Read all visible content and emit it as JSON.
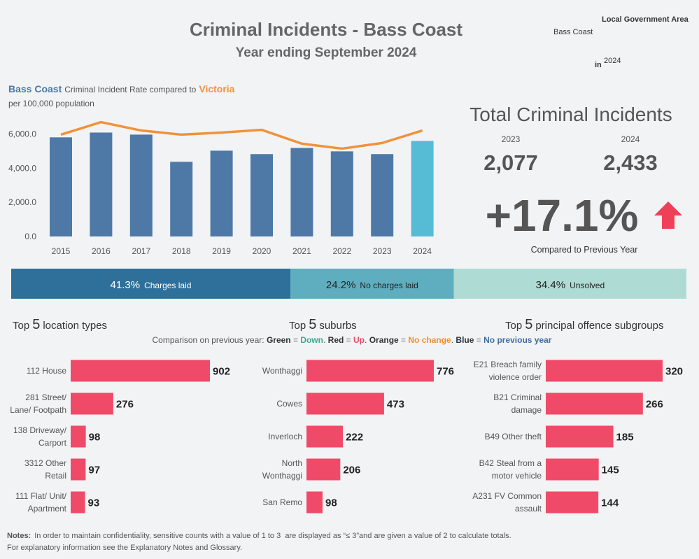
{
  "header": {
    "title": "Criminal Incidents - Bass Coast",
    "subtitle": "Year ending September 2024"
  },
  "filter": {
    "label": "Local Government Area",
    "area": "Bass Coast",
    "in_label": "in",
    "year": "2024"
  },
  "kpi": {
    "title": "Total Criminal Incidents",
    "items": [
      {
        "year": "2023",
        "value": "2,077"
      },
      {
        "year": "2024",
        "value": "2,433"
      }
    ],
    "change": "+17.1%",
    "caption": "Compared to Previous Year"
  },
  "comparison_note": [
    {
      "text": "Comparison on previous year: ",
      "color": "#555555",
      "bold": false
    },
    {
      "text": "Green",
      "color": "#333333",
      "bold": true
    },
    {
      "text": " = ",
      "color": "#555555",
      "bold": false
    },
    {
      "text": "Down",
      "color": "#3aaa8b",
      "bold": true
    },
    {
      "text": ". ",
      "color": "#555555",
      "bold": false
    },
    {
      "text": "Red",
      "color": "#333333",
      "bold": true
    },
    {
      "text": " = ",
      "color": "#555555",
      "bold": false
    },
    {
      "text": "Up",
      "color": "#e84a65",
      "bold": true
    },
    {
      "text": ". ",
      "color": "#555555",
      "bold": false
    },
    {
      "text": "Orange",
      "color": "#333333",
      "bold": true
    },
    {
      "text": " = ",
      "color": "#555555",
      "bold": false
    },
    {
      "text": "No change",
      "color": "#f09030",
      "bold": true
    },
    {
      "text": ". ",
      "color": "#555555",
      "bold": false
    },
    {
      "text": "Blue",
      "color": "#333333",
      "bold": true
    },
    {
      "text": " = ",
      "color": "#555555",
      "bold": false
    },
    {
      "text": "No previous year",
      "color": "#3f6e9e",
      "bold": true
    }
  ],
  "notes": {
    "label": "Notes:",
    "line1": "In order to maintain confidentiality, sensitive counts with a value of 1 to 3  are displayed as “≤ 3”and are given a value of 2 to calculate totals.",
    "line2": "For explanatory information see the Explanatory Notes and Glossary."
  },
  "chart_data": [
    {
      "type": "combo",
      "title": "Criminal Incident Rate compared to",
      "subtitle": "per 100,000 population",
      "categories": [
        "2015",
        "2016",
        "2017",
        "2018",
        "2019",
        "2020",
        "2021",
        "2022",
        "2023",
        "2024"
      ],
      "series": [
        {
          "name": "Bass Coast",
          "mark": "bar",
          "color": "#4a78a8",
          "colors": [
            "#4e79a7",
            "#4e79a7",
            "#4e79a7",
            "#4e79a7",
            "#4e79a7",
            "#4e79a7",
            "#4e79a7",
            "#4e79a7",
            "#4e79a7",
            "#56bcd6"
          ],
          "values": [
            5800,
            6080,
            5960,
            4370,
            5020,
            4820,
            5180,
            4980,
            4820,
            5590
          ]
        },
        {
          "name": "Victoria",
          "mark": "line",
          "color": "#f0923a",
          "values": [
            5960,
            6690,
            6200,
            5960,
            6080,
            6240,
            5430,
            5140,
            5470,
            6200
          ]
        }
      ],
      "ylim": [
        0,
        7000
      ],
      "yticks": [
        {
          "value": 0,
          "label": "0.0"
        },
        {
          "value": 2000,
          "label": "2,000.0"
        },
        {
          "value": 4000,
          "label": "4,000.0"
        },
        {
          "value": 6000,
          "label": "6,000.0"
        }
      ],
      "grid": false
    },
    {
      "type": "stacked",
      "categories": [
        "Charges laid",
        "No charges laid",
        "Unsolved"
      ],
      "values": [
        41.3,
        24.2,
        34.4
      ],
      "value_labels": [
        "41.3%",
        "24.2%",
        "34.4%"
      ],
      "colors": [
        "#2e7099",
        "#5eaebf",
        "#aedcd4"
      ],
      "label_colors": [
        "#ffffff",
        "#222222",
        "#222222"
      ],
      "xlim": [
        0,
        100
      ]
    },
    {
      "type": "hbar",
      "title": [
        "Top",
        "5",
        "location types"
      ],
      "categories": [
        "112 House",
        "281 Street/ Lane/ Footpath",
        "138 Driveway/ Carport",
        "3312 Other Retail",
        "111 Flat/ Unit/ Apartment"
      ],
      "values": [
        902,
        276,
        98,
        97,
        93
      ],
      "color": "#ef4b68",
      "xlim": [
        0,
        902
      ]
    },
    {
      "type": "hbar",
      "title": [
        "Top",
        "5",
        "suburbs"
      ],
      "categories": [
        "Wonthaggi",
        "Cowes",
        "Inverloch",
        "North Wonthaggi",
        "San Remo"
      ],
      "values": [
        776,
        473,
        222,
        206,
        98
      ],
      "color": "#ef4b68",
      "xlim": [
        0,
        776
      ]
    },
    {
      "type": "hbar",
      "title": [
        "Top",
        "5",
        "principal offence subgroups"
      ],
      "categories": [
        "E21 Breach family violence order",
        "B21 Criminal damage",
        "B49 Other theft",
        "B42 Steal from a motor vehicle",
        "A231 FV Common assault"
      ],
      "values": [
        320,
        266,
        185,
        145,
        144
      ],
      "color": "#ef4b68",
      "xlim": [
        0,
        320
      ]
    }
  ]
}
